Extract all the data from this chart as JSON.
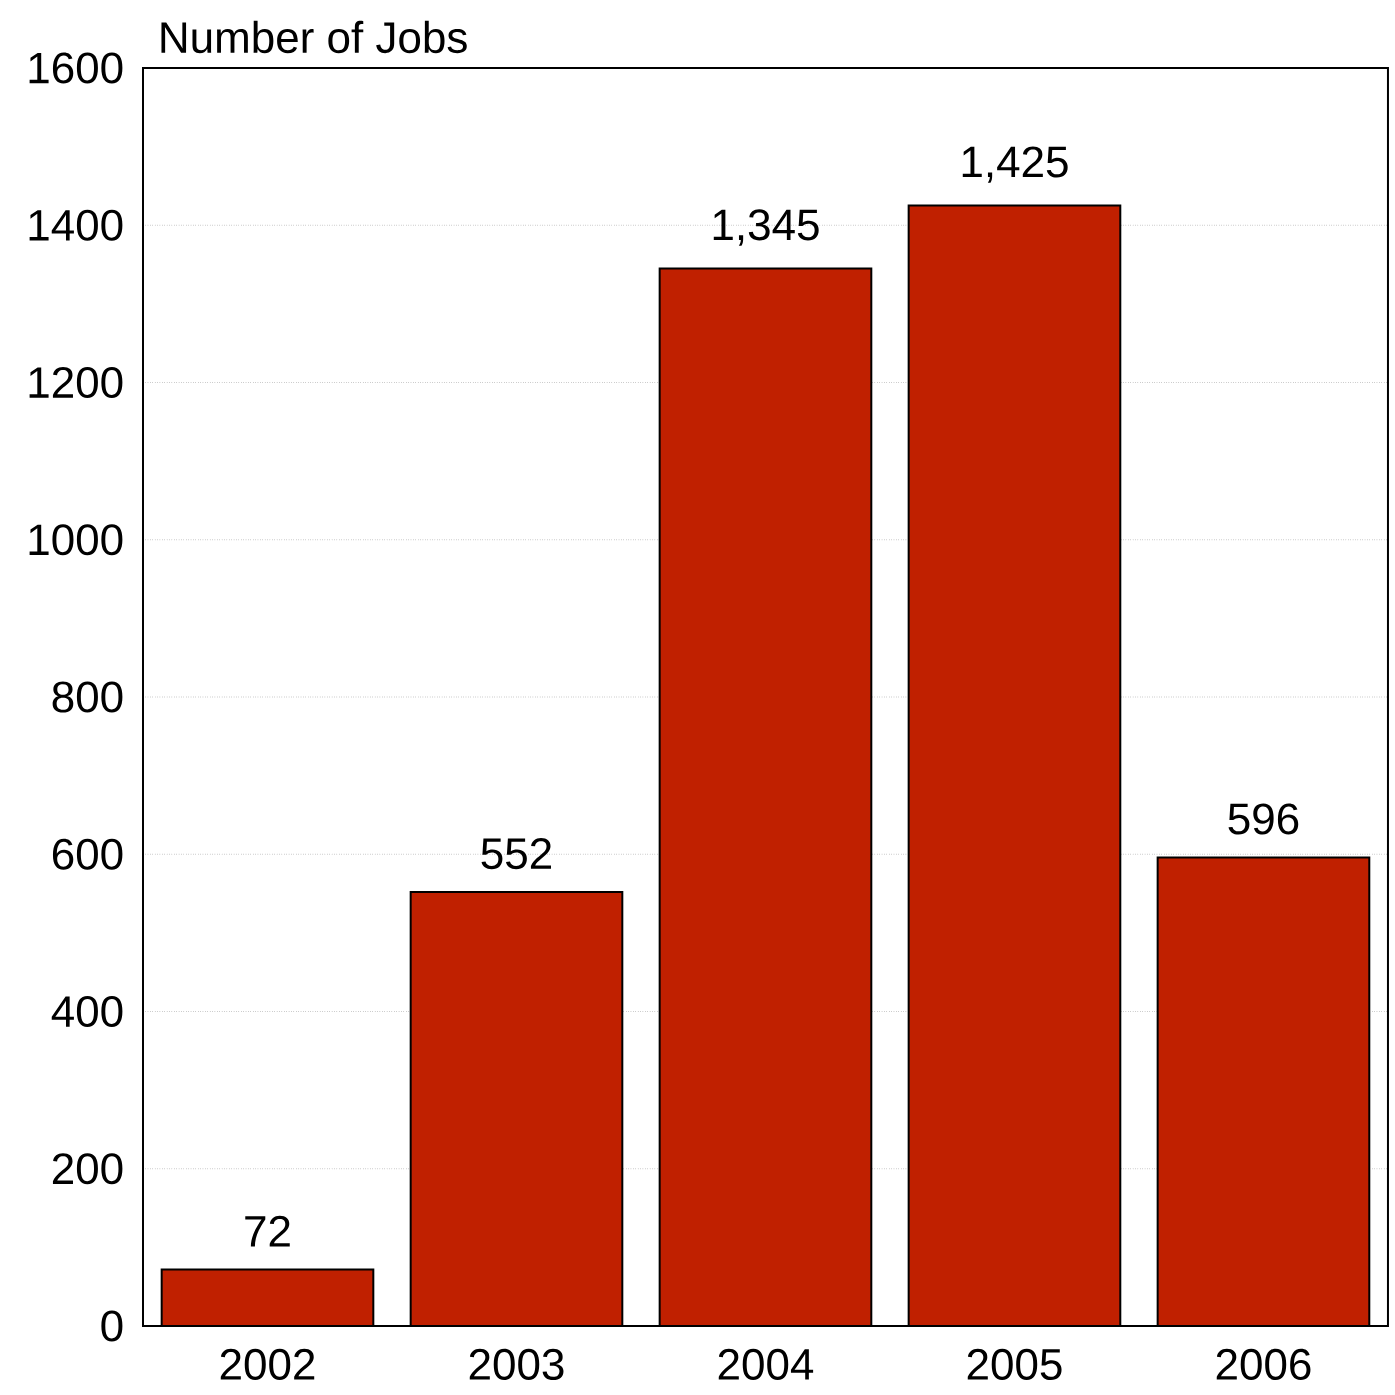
{
  "chart_data": {
    "type": "bar",
    "ylabel": "Number of Jobs",
    "categories": [
      "2002",
      "2003",
      "2004",
      "2005",
      "2006"
    ],
    "values": [
      72,
      552,
      1345,
      1425,
      596
    ],
    "value_labels": [
      "72",
      "552",
      "1,345",
      "1,425",
      "596"
    ],
    "color": "#c02000",
    "ylim": [
      0,
      1600
    ],
    "yticks": [
      0,
      200,
      400,
      600,
      800,
      1000,
      1200,
      1400,
      1600
    ],
    "grid": "y"
  }
}
